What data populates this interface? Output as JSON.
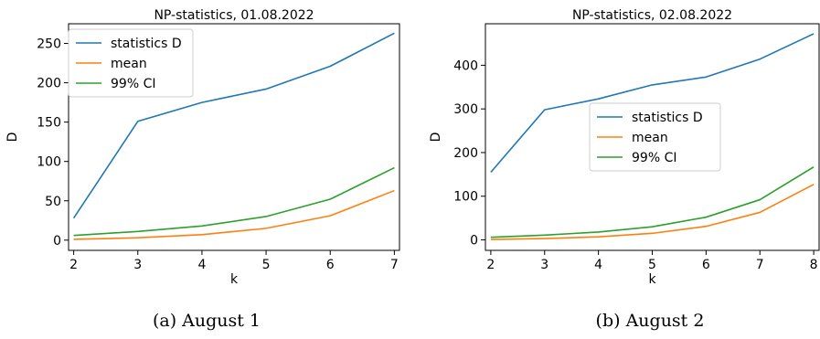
{
  "chart_data": [
    {
      "type": "line",
      "title": "NP-statistics, 01.08.2022",
      "caption": "(a) August 1",
      "xlabel": "k",
      "ylabel": "D",
      "x": [
        2,
        3,
        4,
        5,
        6,
        7
      ],
      "xlim": [
        1.92,
        7.08
      ],
      "ylim": [
        -13,
        275
      ],
      "xticks": [
        2,
        3,
        4,
        5,
        6,
        7
      ],
      "yticks": [
        0,
        50,
        100,
        150,
        200,
        250
      ],
      "legend_position": "top-left",
      "series": [
        {
          "name": "statistics D",
          "color": "#1f77b4",
          "values": [
            28,
            151,
            175,
            192,
            221,
            263
          ]
        },
        {
          "name": "mean",
          "color": "#ff7f0e",
          "values": [
            1,
            3,
            7,
            15,
            31,
            63
          ]
        },
        {
          "name": "99% CI",
          "color": "#2ca02c",
          "values": [
            6,
            11,
            18,
            30,
            52,
            92
          ]
        }
      ]
    },
    {
      "type": "line",
      "title": "NP-statistics, 02.08.2022",
      "caption": "(b) August 2",
      "xlabel": "k",
      "ylabel": "D",
      "x": [
        2,
        3,
        4,
        5,
        6,
        7,
        8
      ],
      "xlim": [
        1.9,
        8.1
      ],
      "ylim": [
        -24,
        495
      ],
      "xticks": [
        2,
        3,
        4,
        5,
        6,
        7,
        8
      ],
      "yticks": [
        0,
        100,
        200,
        300,
        400
      ],
      "legend_position": "center",
      "series": [
        {
          "name": "statistics D",
          "color": "#1f77b4",
          "values": [
            155,
            298,
            323,
            355,
            373,
            414,
            472
          ]
        },
        {
          "name": "mean",
          "color": "#ff7f0e",
          "values": [
            1,
            3,
            7,
            15,
            31,
            63,
            127
          ]
        },
        {
          "name": "99% CI",
          "color": "#2ca02c",
          "values": [
            6,
            11,
            18,
            30,
            52,
            92,
            167
          ]
        }
      ]
    }
  ]
}
